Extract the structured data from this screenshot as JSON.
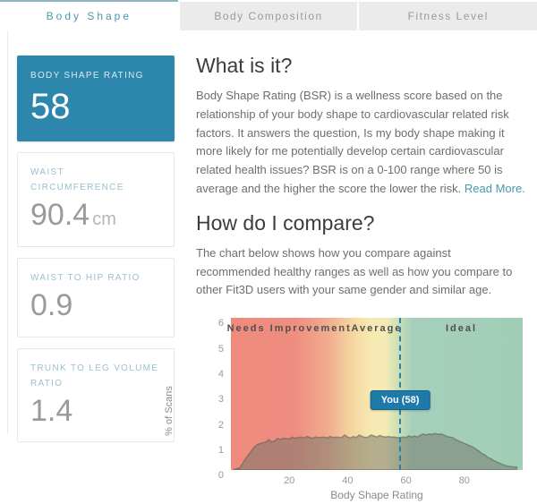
{
  "tabs": [
    {
      "label": "Body Shape",
      "active": true
    },
    {
      "label": "Body Composition",
      "active": false
    },
    {
      "label": "Fitness Level",
      "active": false
    }
  ],
  "sidebar": {
    "cards": [
      {
        "title": "BODY SHAPE RATING",
        "value": "58",
        "unit": "",
        "highlight": true
      },
      {
        "title": "WAIST CIRCUMFERENCE",
        "value": "90.4",
        "unit": "cm",
        "highlight": false
      },
      {
        "title": "WAIST TO HIP RATIO",
        "value": "0.9",
        "unit": "",
        "highlight": false
      },
      {
        "title": "TRUNK TO LEG VOLUME RATIO",
        "value": "1.4",
        "unit": "",
        "highlight": false
      }
    ]
  },
  "main": {
    "what_is_it": {
      "heading": "What is it?",
      "body": "Body Shape Rating (BSR) is a wellness score based on the relationship of your body shape to cardiovascular related risk factors. It answers the question, Is my body shape making it more likely for me potentially develop certain cardiovascular related health issues? BSR is on a 0-100 range where 50 is average and the higher the score the lower the risk. ",
      "link": "Read More."
    },
    "compare": {
      "heading": "How do I compare?",
      "body": "The chart below shows how you compare against recommended healthy ranges as well as how you compare to other Fit3D users with your same gender and similar age."
    }
  },
  "colors": {
    "accent": "#4a97ad",
    "card_blue": "#2d87ac",
    "tooltip_blue": "#1d7aa9",
    "marker_blue": "#2b80a6",
    "zone_red": "#ee8b7d",
    "zone_yellow": "#f8e9b2",
    "zone_green": "#a3ceb9",
    "distribution_gray": "rgba(113,113,104,0.5)"
  },
  "chart_data": {
    "type": "area",
    "title": "",
    "xlabel": "Body Shape Rating",
    "ylabel": "% of Scans",
    "xlim": [
      0,
      100
    ],
    "ylim": [
      0,
      6
    ],
    "xticks": [
      20,
      40,
      60,
      80
    ],
    "yticks": [
      0,
      1,
      2,
      3,
      4,
      5,
      6
    ],
    "grid": false,
    "zones": [
      {
        "label": "Needs Improvement",
        "center_pct": 20
      },
      {
        "label": "Average",
        "center_pct": 50
      },
      {
        "label": "Ideal",
        "center_pct": 79
      }
    ],
    "zone_gradient": [
      {
        "pos": 0,
        "color": "#ee8b7d"
      },
      {
        "pos": 22,
        "color": "#ee8e80"
      },
      {
        "pos": 33,
        "color": "#f0ab8e"
      },
      {
        "pos": 42,
        "color": "#f5d8a2"
      },
      {
        "pos": 48,
        "color": "#f8e9b2"
      },
      {
        "pos": 53,
        "color": "#f6ebb6"
      },
      {
        "pos": 57,
        "color": "#cfe0b5"
      },
      {
        "pos": 62,
        "color": "#a5cfba"
      },
      {
        "pos": 100,
        "color": "#a2ceb8"
      }
    ],
    "marker": {
      "label": "You (58)",
      "value": 58
    },
    "distribution": {
      "x": [
        1,
        3,
        4,
        5,
        6,
        7,
        8,
        9,
        10,
        12,
        13,
        14,
        15,
        16,
        17,
        18,
        20,
        21,
        22,
        24,
        25,
        26,
        28,
        29,
        30,
        32,
        33,
        34,
        35,
        36,
        38,
        39,
        40,
        41,
        42,
        43,
        44,
        45,
        46,
        47,
        48,
        49,
        50,
        51,
        52,
        53,
        54,
        55,
        56,
        57,
        58,
        59,
        60,
        61,
        62,
        63,
        64,
        65,
        66,
        67,
        68,
        69,
        70,
        71,
        72,
        73,
        74,
        75,
        76,
        77,
        78,
        79,
        80,
        81,
        82,
        83,
        84,
        85,
        86,
        87,
        88,
        89,
        90,
        91,
        92,
        93,
        94,
        95,
        96,
        97,
        98
      ],
      "y": [
        0.02,
        0.08,
        0.25,
        0.45,
        0.6,
        0.75,
        0.9,
        1.0,
        1.05,
        1.1,
        1.2,
        1.1,
        1.15,
        1.25,
        1.2,
        1.25,
        1.22,
        1.3,
        1.25,
        1.3,
        1.26,
        1.32,
        1.25,
        1.3,
        1.28,
        1.3,
        1.26,
        1.32,
        1.28,
        1.3,
        1.28,
        1.38,
        1.3,
        1.26,
        1.32,
        1.28,
        1.38,
        1.32,
        1.28,
        1.3,
        1.38,
        1.34,
        1.3,
        1.36,
        1.32,
        1.3,
        1.32,
        1.3,
        1.3,
        1.28,
        1.26,
        1.3,
        1.28,
        1.35,
        1.3,
        1.34,
        1.3,
        1.38,
        1.42,
        1.38,
        1.42,
        1.4,
        1.44,
        1.4,
        1.42,
        1.38,
        1.32,
        1.3,
        1.28,
        1.2,
        1.15,
        1.1,
        1.05,
        1.0,
        0.95,
        0.9,
        0.82,
        0.75,
        0.65,
        0.6,
        0.5,
        0.45,
        0.38,
        0.32,
        0.28,
        0.22,
        0.18,
        0.15,
        0.13,
        0.12,
        0.12
      ]
    }
  }
}
